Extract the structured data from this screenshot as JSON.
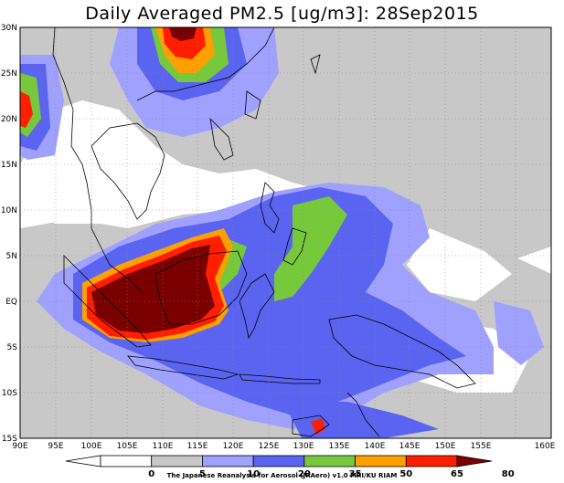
{
  "title": "Daily Averaged PM2.5 [ug/m3]: 28Sep2015",
  "credit": "The Japanese Reanalysis for Aerosol (JRAero) v1.0 MRI/KU RIAM",
  "latitude_labels": [
    "30N",
    "25N",
    "20N",
    "15N",
    "10N",
    "5N",
    "EQ",
    "5S",
    "10S",
    "15S"
  ],
  "longitude_labels": [
    "90E",
    "95E",
    "100E",
    "105E",
    "110E",
    "115E",
    "120E",
    "125E",
    "130E",
    "135E",
    "140E",
    "145E",
    "150E",
    "155E",
    "160E"
  ],
  "colorbar": {
    "levels": [
      "0",
      "5",
      "10",
      "20",
      "35",
      "50",
      "65",
      "80"
    ],
    "colors": [
      "#ffffff",
      "#ffffff",
      "#c8c8c8",
      "#a0a0ff",
      "#5a64f0",
      "#78c83c",
      "#ffa000",
      "#ff1e00",
      "#7a0000"
    ]
  },
  "palette": {
    "bg": "#ffffff",
    "light_gray": "#c8c8c8",
    "light_blue": "#a0a0ff",
    "blue": "#5a64f0",
    "green": "#78c83c",
    "orange": "#ffa000",
    "red": "#ff1e00",
    "dark_red": "#7a0000"
  }
}
